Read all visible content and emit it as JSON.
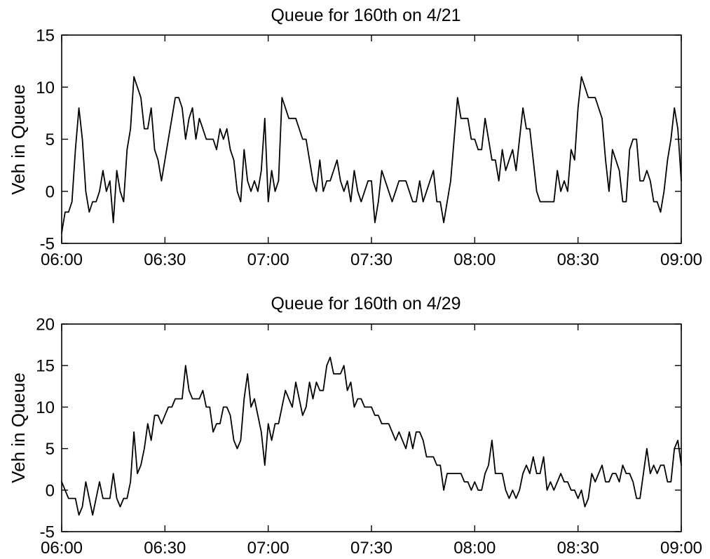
{
  "colors": {
    "line": "#000000",
    "axes": "#000000",
    "background": "#ffffff"
  },
  "chart_data": [
    {
      "type": "line",
      "title": "Queue for 160th on 4/21",
      "ylabel": "Veh in Queue",
      "xlim": [
        "06:00",
        "09:00"
      ],
      "ylim": [
        -5,
        15
      ],
      "xticks": [
        "06:00",
        "06:30",
        "07:00",
        "07:30",
        "08:00",
        "08:30",
        "09:00"
      ],
      "yticks": [
        -5,
        0,
        5,
        10,
        15
      ],
      "grid": false,
      "x": [
        "06:00",
        "06:01",
        "06:02",
        "06:03",
        "06:04",
        "06:05",
        "06:06",
        "06:07",
        "06:08",
        "06:09",
        "06:10",
        "06:11",
        "06:12",
        "06:13",
        "06:14",
        "06:15",
        "06:16",
        "06:17",
        "06:18",
        "06:19",
        "06:20",
        "06:21",
        "06:22",
        "06:23",
        "06:24",
        "06:25",
        "06:26",
        "06:27",
        "06:28",
        "06:29",
        "06:30",
        "06:31",
        "06:32",
        "06:33",
        "06:34",
        "06:35",
        "06:36",
        "06:37",
        "06:38",
        "06:39",
        "06:40",
        "06:41",
        "06:42",
        "06:43",
        "06:44",
        "06:45",
        "06:46",
        "06:47",
        "06:48",
        "06:49",
        "06:50",
        "06:51",
        "06:52",
        "06:53",
        "06:54",
        "06:55",
        "06:56",
        "06:57",
        "06:58",
        "06:59",
        "07:00",
        "07:01",
        "07:02",
        "07:03",
        "07:04",
        "07:05",
        "07:06",
        "07:07",
        "07:08",
        "07:09",
        "07:10",
        "07:11",
        "07:12",
        "07:13",
        "07:14",
        "07:15",
        "07:16",
        "07:17",
        "07:18",
        "07:19",
        "07:20",
        "07:21",
        "07:22",
        "07:23",
        "07:24",
        "07:25",
        "07:26",
        "07:27",
        "07:28",
        "07:29",
        "07:30",
        "07:31",
        "07:32",
        "07:33",
        "07:34",
        "07:35",
        "07:36",
        "07:37",
        "07:38",
        "07:39",
        "07:40",
        "07:41",
        "07:42",
        "07:43",
        "07:44",
        "07:45",
        "07:46",
        "07:47",
        "07:48",
        "07:49",
        "07:50",
        "07:51",
        "07:52",
        "07:53",
        "07:54",
        "07:55",
        "07:56",
        "07:57",
        "07:58",
        "07:59",
        "08:00",
        "08:01",
        "08:02",
        "08:03",
        "08:04",
        "08:05",
        "08:06",
        "08:07",
        "08:08",
        "08:09",
        "08:10",
        "08:11",
        "08:12",
        "08:13",
        "08:14",
        "08:15",
        "08:16",
        "08:17",
        "08:18",
        "08:19",
        "08:20",
        "08:21",
        "08:22",
        "08:23",
        "08:24",
        "08:25",
        "08:26",
        "08:27",
        "08:28",
        "08:29",
        "08:30",
        "08:31",
        "08:32",
        "08:33",
        "08:34",
        "08:35",
        "08:36",
        "08:37",
        "08:38",
        "08:39",
        "08:40",
        "08:41",
        "08:42",
        "08:43",
        "08:44",
        "08:45",
        "08:46",
        "08:47",
        "08:48",
        "08:49",
        "08:50",
        "08:51",
        "08:52",
        "08:53",
        "08:54",
        "08:55",
        "08:56",
        "08:57",
        "08:58",
        "08:59",
        "09:00"
      ],
      "series": [
        {
          "values": [
            -4,
            -2,
            -2,
            -1,
            4,
            8,
            5,
            0,
            -2,
            -1,
            -1,
            0,
            2,
            0,
            1,
            -3,
            2,
            0,
            -1,
            4,
            6,
            11,
            10,
            9,
            6,
            6,
            8,
            4,
            3,
            1,
            3,
            5,
            7,
            9,
            9,
            8,
            5,
            7,
            8,
            5,
            7,
            6,
            5,
            5,
            5,
            4,
            6,
            5,
            6,
            4,
            3,
            0,
            -1,
            4,
            1,
            0,
            1,
            0,
            2,
            7,
            -1,
            2,
            0,
            1,
            9,
            8,
            7,
            7,
            7,
            6,
            5,
            5,
            3,
            1,
            0,
            3,
            0,
            1,
            1,
            2,
            3,
            1,
            0,
            1,
            -1,
            2,
            0,
            -1,
            0,
            1,
            1,
            -3,
            -1,
            2,
            1,
            0,
            -1,
            0,
            1,
            1,
            1,
            0,
            -1,
            -1,
            1,
            -1,
            0,
            1,
            2,
            -1,
            -1,
            -3,
            -1,
            1,
            5,
            9,
            7,
            7,
            7,
            5,
            5,
            4,
            4,
            7,
            5,
            3,
            3,
            1,
            4,
            2,
            3,
            4,
            2,
            5,
            8,
            6,
            6,
            3,
            0,
            -1,
            -1,
            -1,
            -1,
            -1,
            2,
            0,
            1,
            0,
            4,
            3,
            8,
            11,
            10,
            9,
            9,
            9,
            8,
            7,
            3,
            0,
            4,
            3,
            2,
            -1,
            -1,
            4,
            5,
            5,
            1,
            1,
            2,
            1,
            -1,
            -1,
            -2,
            0,
            3,
            5,
            8,
            6,
            1
          ]
        }
      ]
    },
    {
      "type": "line",
      "title": "Queue for 160th on 4/29",
      "ylabel": "Veh in Queue",
      "xlim": [
        "06:00",
        "09:00"
      ],
      "ylim": [
        -5,
        20
      ],
      "xticks": [
        "06:00",
        "06:30",
        "07:00",
        "07:30",
        "08:00",
        "08:30",
        "09:00"
      ],
      "yticks": [
        -5,
        0,
        5,
        10,
        15,
        20
      ],
      "grid": false,
      "x": [
        "06:00",
        "06:01",
        "06:02",
        "06:03",
        "06:04",
        "06:05",
        "06:06",
        "06:07",
        "06:08",
        "06:09",
        "06:10",
        "06:11",
        "06:12",
        "06:13",
        "06:14",
        "06:15",
        "06:16",
        "06:17",
        "06:18",
        "06:19",
        "06:20",
        "06:21",
        "06:22",
        "06:23",
        "06:24",
        "06:25",
        "06:26",
        "06:27",
        "06:28",
        "06:29",
        "06:30",
        "06:31",
        "06:32",
        "06:33",
        "06:34",
        "06:35",
        "06:36",
        "06:37",
        "06:38",
        "06:39",
        "06:40",
        "06:41",
        "06:42",
        "06:43",
        "06:44",
        "06:45",
        "06:46",
        "06:47",
        "06:48",
        "06:49",
        "06:50",
        "06:51",
        "06:52",
        "06:53",
        "06:54",
        "06:55",
        "06:56",
        "06:57",
        "06:58",
        "06:59",
        "07:00",
        "07:01",
        "07:02",
        "07:03",
        "07:04",
        "07:05",
        "07:06",
        "07:07",
        "07:08",
        "07:09",
        "07:10",
        "07:11",
        "07:12",
        "07:13",
        "07:14",
        "07:15",
        "07:16",
        "07:17",
        "07:18",
        "07:19",
        "07:20",
        "07:21",
        "07:22",
        "07:23",
        "07:24",
        "07:25",
        "07:26",
        "07:27",
        "07:28",
        "07:29",
        "07:30",
        "07:31",
        "07:32",
        "07:33",
        "07:34",
        "07:35",
        "07:36",
        "07:37",
        "07:38",
        "07:39",
        "07:40",
        "07:41",
        "07:42",
        "07:43",
        "07:44",
        "07:45",
        "07:46",
        "07:47",
        "07:48",
        "07:49",
        "07:50",
        "07:51",
        "07:52",
        "07:53",
        "07:54",
        "07:55",
        "07:56",
        "07:57",
        "07:58",
        "07:59",
        "08:00",
        "08:01",
        "08:02",
        "08:03",
        "08:04",
        "08:05",
        "08:06",
        "08:07",
        "08:08",
        "08:09",
        "08:10",
        "08:11",
        "08:12",
        "08:13",
        "08:14",
        "08:15",
        "08:16",
        "08:17",
        "08:18",
        "08:19",
        "08:20",
        "08:21",
        "08:22",
        "08:23",
        "08:24",
        "08:25",
        "08:26",
        "08:27",
        "08:28",
        "08:29",
        "08:30",
        "08:31",
        "08:32",
        "08:33",
        "08:34",
        "08:35",
        "08:36",
        "08:37",
        "08:38",
        "08:39",
        "08:40",
        "08:41",
        "08:42",
        "08:43",
        "08:44",
        "08:45",
        "08:46",
        "08:47",
        "08:48",
        "08:49",
        "08:50",
        "08:51",
        "08:52",
        "08:53",
        "08:54",
        "08:55",
        "08:56",
        "08:57",
        "08:58",
        "08:59",
        "09:00"
      ],
      "series": [
        {
          "values": [
            1,
            0,
            -1,
            -1,
            -1,
            -3,
            -2,
            1,
            -1,
            -3,
            -1,
            1,
            -1,
            -1,
            -1,
            2,
            -1,
            -2,
            -1,
            -1,
            1,
            7,
            2,
            3,
            5,
            8,
            6,
            9,
            9,
            8,
            9,
            10,
            10,
            11,
            11,
            11,
            15,
            12,
            11,
            11,
            11,
            12,
            10,
            10,
            7,
            8,
            8,
            10,
            10,
            9,
            6,
            5,
            6,
            11,
            14,
            10,
            11,
            9,
            7,
            3,
            8,
            6,
            8,
            8,
            10,
            12,
            11,
            10,
            13,
            11,
            9,
            10,
            13,
            11,
            13,
            12,
            12,
            15,
            16,
            14,
            14,
            14,
            15,
            12,
            13,
            10,
            11,
            11,
            10,
            10,
            10,
            9,
            9,
            8,
            8,
            8,
            7,
            6,
            7,
            6,
            5,
            7,
            5,
            7,
            7,
            6,
            4,
            4,
            4,
            3,
            3,
            0,
            2,
            2,
            2,
            2,
            2,
            1,
            1,
            0,
            1,
            0,
            0,
            2,
            3,
            6,
            2,
            2,
            2,
            0,
            -1,
            0,
            -1,
            0,
            2,
            3,
            2,
            4,
            2,
            2,
            4,
            0,
            1,
            0,
            1,
            2,
            1,
            1,
            0,
            0,
            -1,
            0,
            -2,
            -1,
            2,
            1,
            2,
            3,
            1,
            1,
            2,
            2,
            1,
            3,
            2,
            2,
            1,
            -1,
            -1,
            2,
            5,
            2,
            3,
            2,
            3,
            3,
            1,
            1,
            5,
            6,
            3
          ]
        }
      ]
    }
  ]
}
